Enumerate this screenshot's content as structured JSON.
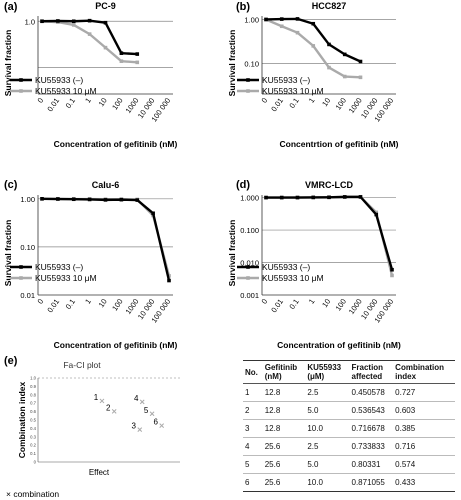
{
  "chart_data": [
    {
      "id": "a",
      "panel_label": "(a)",
      "type": "line",
      "title": "PC-9",
      "xlabel": "Concentration of gefitinib (nM)",
      "ylabel": "Survival fraction",
      "x_ticks": [
        "0",
        "0.01",
        "0.1",
        "1",
        "10",
        "100",
        "1000",
        "10 000",
        "100 000"
      ],
      "y_scale": "log",
      "y_ticks": [
        "1.0"
      ],
      "ylim": [
        0.08,
        1.2
      ],
      "y_gridlines": [
        1.0,
        0.2
      ],
      "legend_position": "bottom-left",
      "series": [
        {
          "name": "KU55933 (–)",
          "color": "#000000",
          "x_index": [
            0,
            1,
            2,
            3,
            4,
            5,
            6
          ],
          "values": [
            1.0,
            1.01,
            1.0,
            1.02,
            0.95,
            0.33,
            0.32
          ]
        },
        {
          "name": "KU55933  10 μM",
          "color": "#aaaaaa",
          "x_index": [
            0,
            1,
            2,
            3,
            4,
            5,
            6
          ],
          "values": [
            1.0,
            0.97,
            0.88,
            0.64,
            0.4,
            0.25,
            0.24
          ]
        }
      ]
    },
    {
      "id": "b",
      "panel_label": "(b)",
      "type": "line",
      "title": "HCC827",
      "xlabel": "Concentrtion of gefitinib (nM)",
      "ylabel": "Survival fraction",
      "x_ticks": [
        "0",
        "0.01",
        "0.1",
        "1",
        "10",
        "100",
        "1000",
        "10 000",
        "100 000"
      ],
      "y_scale": "log",
      "y_ticks": [
        "1.00",
        "0.10"
      ],
      "ylim": [
        0.02,
        1.2
      ],
      "y_gridlines": [
        1.0,
        0.1
      ],
      "legend_position": "bottom-left",
      "series": [
        {
          "name": "KU55933 (–)",
          "color": "#000000",
          "x_index": [
            0,
            1,
            2,
            3,
            4,
            5,
            6
          ],
          "values": [
            1.0,
            1.02,
            1.03,
            0.8,
            0.27,
            0.16,
            0.11
          ]
        },
        {
          "name": "KU55933 10 μM",
          "color": "#aaaaaa",
          "x_index": [
            0,
            1,
            2,
            3,
            4,
            5,
            6
          ],
          "values": [
            1.0,
            0.7,
            0.5,
            0.25,
            0.08,
            0.05,
            0.048
          ]
        }
      ]
    },
    {
      "id": "c",
      "panel_label": "(c)",
      "type": "line",
      "title": "Calu-6",
      "xlabel": "Concentration of gefitinib (nM)",
      "ylabel": "Survival fraction",
      "x_ticks": [
        "0",
        "0.01",
        "0.1",
        "1",
        "10",
        "100",
        "1000",
        "10 000",
        "100 000"
      ],
      "y_scale": "log",
      "y_ticks": [
        "1.00",
        "0.10",
        "0.01"
      ],
      "ylim": [
        0.01,
        1.2
      ],
      "y_gridlines": [
        1.0,
        0.1
      ],
      "legend_position": "bottom-left",
      "series": [
        {
          "name": "KU55933 (–)",
          "color": "#000000",
          "x_index": [
            0,
            1,
            2,
            3,
            4,
            5,
            6,
            7,
            8
          ],
          "values": [
            1.0,
            0.99,
            0.98,
            0.97,
            0.95,
            0.96,
            0.94,
            0.5,
            0.02
          ]
        },
        {
          "name": "KU55933  10 μM",
          "color": "#aaaaaa",
          "x_index": [
            0,
            1,
            2,
            3,
            4,
            5,
            6,
            7,
            8
          ],
          "values": [
            1.0,
            1.0,
            0.99,
            0.99,
            0.98,
            0.98,
            0.97,
            0.45,
            0.025
          ]
        }
      ]
    },
    {
      "id": "d",
      "panel_label": "(d)",
      "type": "line",
      "title": "VMRC-LCD",
      "xlabel": "Concentration of gefitinib (nM)",
      "ylabel": "Survival fraction",
      "x_ticks": [
        "0",
        "0.01",
        "0.1",
        "1",
        "10",
        "100",
        "1000",
        "10 000",
        "100 000"
      ],
      "y_scale": "log",
      "y_ticks": [
        "1.000",
        "0.100",
        "0.010",
        "0.001"
      ],
      "ylim": [
        0.001,
        1.2
      ],
      "y_gridlines": [
        1.0,
        0.1,
        0.01
      ],
      "legend_position": "bottom-left",
      "series": [
        {
          "name": "KU55933 (–)",
          "color": "#000000",
          "x_index": [
            0,
            1,
            2,
            3,
            4,
            5,
            6,
            7,
            8
          ],
          "values": [
            1.0,
            1.0,
            1.0,
            1.01,
            1.02,
            1.05,
            1.05,
            0.3,
            0.006
          ]
        },
        {
          "name": "KU55933 10 μM",
          "color": "#aaaaaa",
          "x_index": [
            0,
            1,
            2,
            3,
            4,
            5,
            6,
            7,
            8
          ],
          "values": [
            1.0,
            1.0,
            1.01,
            1.02,
            1.02,
            1.03,
            1.04,
            0.35,
            0.004
          ]
        }
      ]
    },
    {
      "id": "e",
      "panel_label": "(e)",
      "type": "scatter",
      "title": "Fa-CI plot",
      "xlabel": "Effect",
      "ylabel": "Combination  index",
      "y_ticks": [
        "1.0",
        "0.9",
        "0.8",
        "0.7",
        "0.6",
        "0.5",
        "0.4",
        "0.3",
        "0.2",
        "0.1",
        "0"
      ],
      "ylim": [
        0,
        1.0
      ],
      "xlim": [
        0,
        1.0
      ],
      "reference_line": 1.0,
      "legend": "× combination",
      "points": [
        {
          "label": "1",
          "x": 0.450578,
          "y": 0.727
        },
        {
          "label": "2",
          "x": 0.536543,
          "y": 0.603
        },
        {
          "label": "3",
          "x": 0.716678,
          "y": 0.385
        },
        {
          "label": "4",
          "x": 0.733833,
          "y": 0.716
        },
        {
          "label": "5",
          "x": 0.80331,
          "y": 0.574
        },
        {
          "label": "6",
          "x": 0.871055,
          "y": 0.433
        }
      ]
    }
  ],
  "table": {
    "headers": [
      "No.",
      "Gefitinib\n(nM)",
      "KU55933\n(μM)",
      "Fraction\naffected",
      "Combination\nindex"
    ],
    "rows": [
      [
        "1",
        "12.8",
        "2.5",
        "0.450578",
        "0.727"
      ],
      [
        "2",
        "12.8",
        "5.0",
        "0.536543",
        "0.603"
      ],
      [
        "3",
        "12.8",
        "10.0",
        "0.716678",
        "0.385"
      ],
      [
        "4",
        "25.6",
        "2.5",
        "0.733833",
        "0.716"
      ],
      [
        "5",
        "25.6",
        "5.0",
        "0.80331",
        "0.574"
      ],
      [
        "6",
        "25.6",
        "10.0",
        "0.871055",
        "0.433"
      ]
    ]
  }
}
